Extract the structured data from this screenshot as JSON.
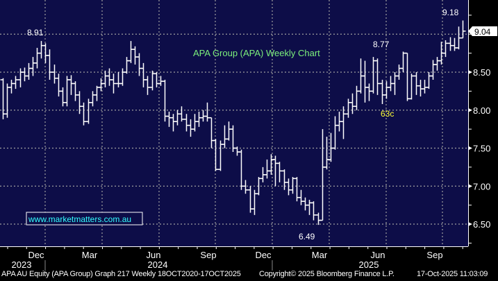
{
  "chart_data": {
    "type": "ohlc",
    "title": "APA Group (APA) Weekly Chart",
    "ylim": [
      6.22,
      9.45
    ],
    "y_ticks": [
      "8.50",
      "8.00",
      "7.50",
      "7.00",
      "6.50"
    ],
    "x_month_labels": [
      "Dec",
      "Mar",
      "Jun",
      "Sep",
      "Dec",
      "Mar",
      "Jun",
      "Sep"
    ],
    "x_year_labels": [
      "2023",
      "2024",
      "2025"
    ],
    "grid": true,
    "last_price": "9.04",
    "annotations": [
      {
        "text": "8.91",
        "bar": 9
      },
      {
        "text": "9.18",
        "bar": 108
      },
      {
        "text": "8.77",
        "bar": 94
      },
      {
        "text": "63c",
        "bar": 95
      },
      {
        "text": "6.49",
        "bar": 74
      }
    ],
    "bars": [
      [
        8.4,
        8.42,
        7.88,
        7.95
      ],
      [
        7.95,
        8.35,
        7.9,
        8.3
      ],
      [
        8.3,
        8.4,
        8.22,
        8.35
      ],
      [
        8.35,
        8.45,
        8.28,
        8.4
      ],
      [
        8.4,
        8.55,
        8.3,
        8.5
      ],
      [
        8.5,
        8.56,
        8.38,
        8.45
      ],
      [
        8.45,
        8.62,
        8.4,
        8.55
      ],
      [
        8.55,
        8.7,
        8.45,
        8.62
      ],
      [
        8.62,
        8.82,
        8.55,
        8.75
      ],
      [
        8.75,
        8.91,
        8.68,
        8.85
      ],
      [
        8.85,
        8.88,
        8.62,
        8.72
      ],
      [
        8.72,
        8.8,
        8.4,
        8.5
      ],
      [
        8.5,
        8.6,
        8.35,
        8.42
      ],
      [
        8.42,
        8.48,
        8.18,
        8.25
      ],
      [
        8.25,
        8.3,
        8.05,
        8.1
      ],
      [
        8.1,
        8.45,
        8.05,
        8.4
      ],
      [
        8.4,
        8.46,
        8.2,
        8.35
      ],
      [
        8.35,
        8.38,
        8.12,
        8.2
      ],
      [
        8.2,
        8.25,
        7.95,
        8.05
      ],
      [
        8.05,
        8.1,
        7.8,
        7.85
      ],
      [
        7.85,
        8.15,
        7.82,
        8.1
      ],
      [
        8.1,
        8.25,
        8.05,
        8.2
      ],
      [
        8.2,
        8.32,
        8.12,
        8.3
      ],
      [
        8.3,
        8.42,
        8.25,
        8.35
      ],
      [
        8.35,
        8.52,
        8.3,
        8.45
      ],
      [
        8.45,
        8.55,
        8.32,
        8.4
      ],
      [
        8.4,
        8.48,
        8.22,
        8.35
      ],
      [
        8.35,
        8.5,
        8.3,
        8.35
      ],
      [
        8.35,
        8.55,
        8.32,
        8.5
      ],
      [
        8.5,
        8.7,
        8.48,
        8.65
      ],
      [
        8.65,
        8.91,
        8.62,
        8.8
      ],
      [
        8.8,
        8.84,
        8.6,
        8.7
      ],
      [
        8.7,
        8.75,
        8.45,
        8.55
      ],
      [
        8.55,
        8.62,
        8.3,
        8.4
      ],
      [
        8.4,
        8.45,
        8.2,
        8.3
      ],
      [
        8.3,
        8.52,
        8.26,
        8.48
      ],
      [
        8.48,
        8.5,
        8.3,
        8.35
      ],
      [
        8.35,
        8.45,
        8.32,
        8.38
      ],
      [
        8.38,
        8.4,
        7.85,
        7.92
      ],
      [
        7.92,
        7.98,
        7.78,
        7.9
      ],
      [
        7.9,
        7.95,
        7.72,
        7.85
      ],
      [
        7.85,
        8.0,
        7.8,
        7.95
      ],
      [
        7.95,
        8.05,
        7.85,
        7.88
      ],
      [
        7.88,
        7.95,
        7.72,
        7.8
      ],
      [
        7.8,
        7.88,
        7.65,
        7.75
      ],
      [
        7.75,
        7.95,
        7.72,
        7.85
      ],
      [
        7.85,
        7.98,
        7.78,
        7.9
      ],
      [
        7.9,
        8.0,
        7.85,
        7.92
      ],
      [
        7.92,
        8.1,
        7.85,
        7.9
      ],
      [
        7.9,
        7.9,
        7.5,
        7.6
      ],
      [
        7.6,
        7.62,
        7.2,
        7.22
      ],
      [
        7.22,
        7.6,
        7.2,
        7.55
      ],
      [
        7.55,
        7.8,
        7.5,
        7.62
      ],
      [
        7.62,
        7.85,
        7.6,
        7.75
      ],
      [
        7.75,
        7.8,
        7.45,
        7.5
      ],
      [
        7.5,
        7.52,
        7.4,
        7.45
      ],
      [
        7.45,
        7.48,
        6.95,
        7.0
      ],
      [
        7.0,
        7.08,
        6.9,
        6.95
      ],
      [
        6.95,
        7.0,
        6.65,
        6.7
      ],
      [
        6.7,
        6.95,
        6.62,
        6.9
      ],
      [
        6.9,
        7.12,
        6.88,
        7.1
      ],
      [
        7.1,
        7.25,
        7.05,
        7.15
      ],
      [
        7.15,
        7.35,
        7.1,
        7.2
      ],
      [
        7.2,
        7.42,
        7.15,
        7.35
      ],
      [
        7.35,
        7.4,
        7.0,
        7.3
      ],
      [
        7.3,
        7.32,
        7.05,
        7.2
      ],
      [
        7.2,
        7.22,
        6.95,
        7.05
      ],
      [
        7.05,
        7.1,
        6.88,
        6.95
      ],
      [
        6.95,
        7.12,
        6.9,
        7.1
      ],
      [
        7.1,
        7.12,
        6.8,
        6.85
      ],
      [
        6.85,
        6.95,
        6.75,
        6.8
      ],
      [
        6.8,
        6.85,
        6.68,
        6.75
      ],
      [
        6.75,
        6.82,
        6.62,
        6.78
      ],
      [
        6.78,
        6.8,
        6.55,
        6.62
      ],
      [
        6.62,
        6.65,
        6.49,
        6.55
      ],
      [
        6.55,
        7.75,
        6.55,
        7.25
      ],
      [
        7.25,
        7.65,
        7.22,
        7.35
      ],
      [
        7.35,
        7.7,
        7.32,
        7.5
      ],
      [
        7.5,
        7.92,
        7.48,
        7.8
      ],
      [
        7.8,
        7.98,
        7.72,
        7.85
      ],
      [
        7.85,
        8.05,
        7.62,
        7.95
      ],
      [
        7.95,
        8.15,
        7.9,
        8.1
      ],
      [
        8.1,
        8.22,
        7.95,
        8.05
      ],
      [
        8.05,
        8.32,
        8.0,
        8.25
      ],
      [
        8.25,
        8.68,
        8.22,
        8.45
      ],
      [
        8.45,
        8.65,
        8.1,
        8.3
      ],
      [
        8.3,
        8.35,
        8.12,
        8.25
      ],
      [
        8.25,
        8.7,
        8.22,
        8.65
      ],
      [
        8.65,
        8.68,
        8.2,
        8.35
      ],
      [
        8.35,
        8.4,
        8.08,
        8.2
      ],
      [
        8.2,
        8.38,
        8.15,
        8.3
      ],
      [
        8.3,
        8.45,
        8.25,
        8.35
      ],
      [
        8.35,
        8.5,
        8.2,
        8.45
      ],
      [
        8.45,
        8.6,
        8.4,
        8.55
      ],
      [
        8.55,
        8.77,
        8.5,
        8.75
      ],
      [
        8.75,
        8.75,
        8.12,
        8.15
      ],
      [
        8.15,
        8.48,
        8.14,
        8.45
      ],
      [
        8.45,
        8.5,
        8.2,
        8.32
      ],
      [
        8.32,
        8.4,
        8.18,
        8.28
      ],
      [
        8.28,
        8.4,
        8.22,
        8.3
      ],
      [
        8.3,
        8.5,
        8.28,
        8.45
      ],
      [
        8.45,
        8.66,
        8.4,
        8.6
      ],
      [
        8.6,
        8.7,
        8.52,
        8.65
      ],
      [
        8.65,
        8.9,
        8.6,
        8.75
      ],
      [
        8.75,
        8.92,
        8.7,
        8.88
      ],
      [
        8.88,
        8.96,
        8.78,
        8.85
      ],
      [
        8.85,
        8.95,
        8.78,
        8.82
      ],
      [
        8.82,
        9.1,
        8.8,
        8.95
      ],
      [
        8.95,
        9.18,
        8.95,
        9.04
      ]
    ]
  },
  "watermark": "www.marketmatters.com.au",
  "footer": {
    "security": "APA AU Equity (APA Group) Graph 217 Weekly 18OCT2020-17OCT2025",
    "copyright": "Copyright© 2025 Bloomberg Finance L.P.",
    "timestamp": "17-Oct-2025 11:03:09"
  },
  "colors": {
    "background": "#0d0d48",
    "bars": "#ffffff",
    "title": "#7cf07c",
    "annotation_63c": "#ffff33",
    "watermark": "#33ffff"
  }
}
